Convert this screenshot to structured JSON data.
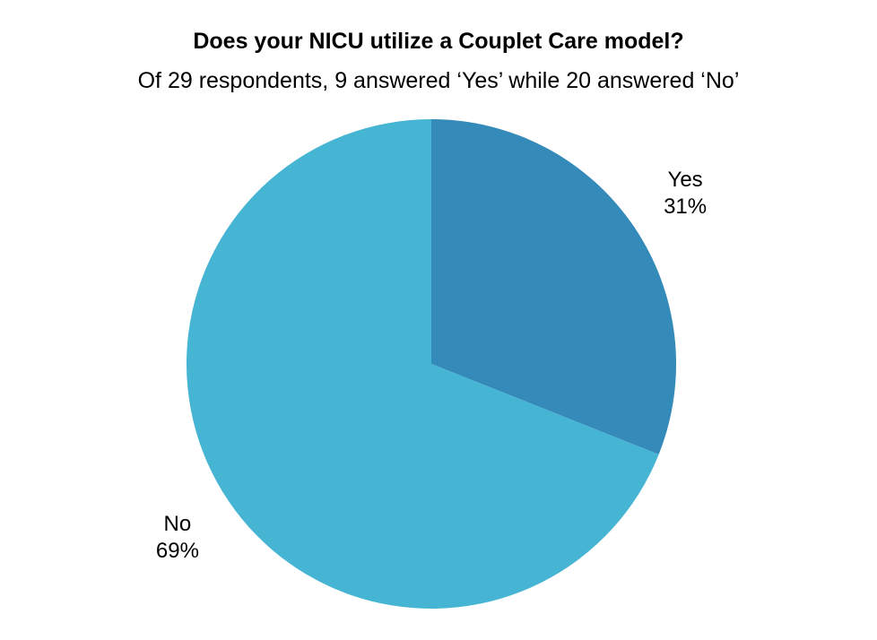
{
  "chart_data": {
    "type": "pie",
    "title": "Does your NICU utilize a Couplet Care model?",
    "subtitle": "Of 29 respondents, 9 answered ‘Yes’ while 20 answered ‘No’",
    "slices": [
      {
        "label": "Yes",
        "value": 9,
        "percent_label": "31%",
        "color": "#348ab8"
      },
      {
        "label": "No",
        "value": 20,
        "percent_label": "69%",
        "color": "#46b4d3"
      }
    ],
    "start_angle": "12 o'clock",
    "direction": "clockwise",
    "legend": "none"
  }
}
